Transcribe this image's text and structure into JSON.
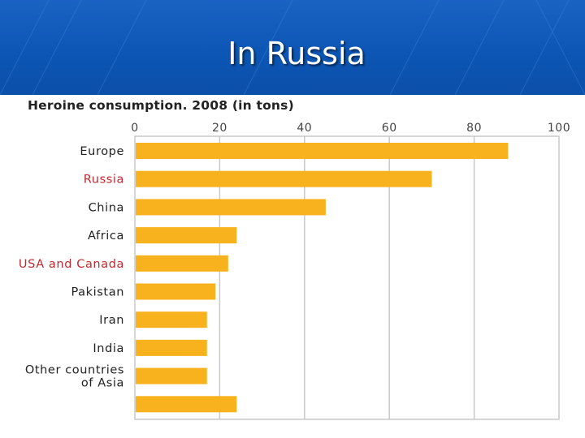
{
  "slide": {
    "title": "In Russia"
  },
  "colors": {
    "header_blue": "#0d56b5",
    "bar": "#f8b21e",
    "highlight_label": "#c0282e",
    "label": "#222222",
    "grid": "#c8c8c8"
  },
  "chart_data": {
    "type": "bar",
    "orientation": "horizontal",
    "title": "Heroine consumption. 2008 (in tons)",
    "xlim": [
      0,
      100
    ],
    "x_ticks": [
      "0",
      "20",
      "40",
      "60",
      "80",
      "100"
    ],
    "tick_position": "top",
    "grid": true,
    "categories": [
      "Europe",
      "Russia",
      "China",
      "Africa",
      "USA and Canada",
      "Pakistan",
      "Iran",
      "India",
      "Other countries of Asia",
      ""
    ],
    "category_lines": [
      [
        "Europe"
      ],
      [
        "Russia"
      ],
      [
        "China"
      ],
      [
        "Africa"
      ],
      [
        "USA and Canada"
      ],
      [
        "Pakistan"
      ],
      [
        "Iran"
      ],
      [
        "India"
      ],
      [
        "Other countries",
        "of Asia"
      ],
      []
    ],
    "highlighted": [
      "Russia",
      "USA and Canada"
    ],
    "values": [
      88,
      70,
      45,
      24,
      22,
      19,
      17,
      17,
      17,
      24
    ]
  }
}
